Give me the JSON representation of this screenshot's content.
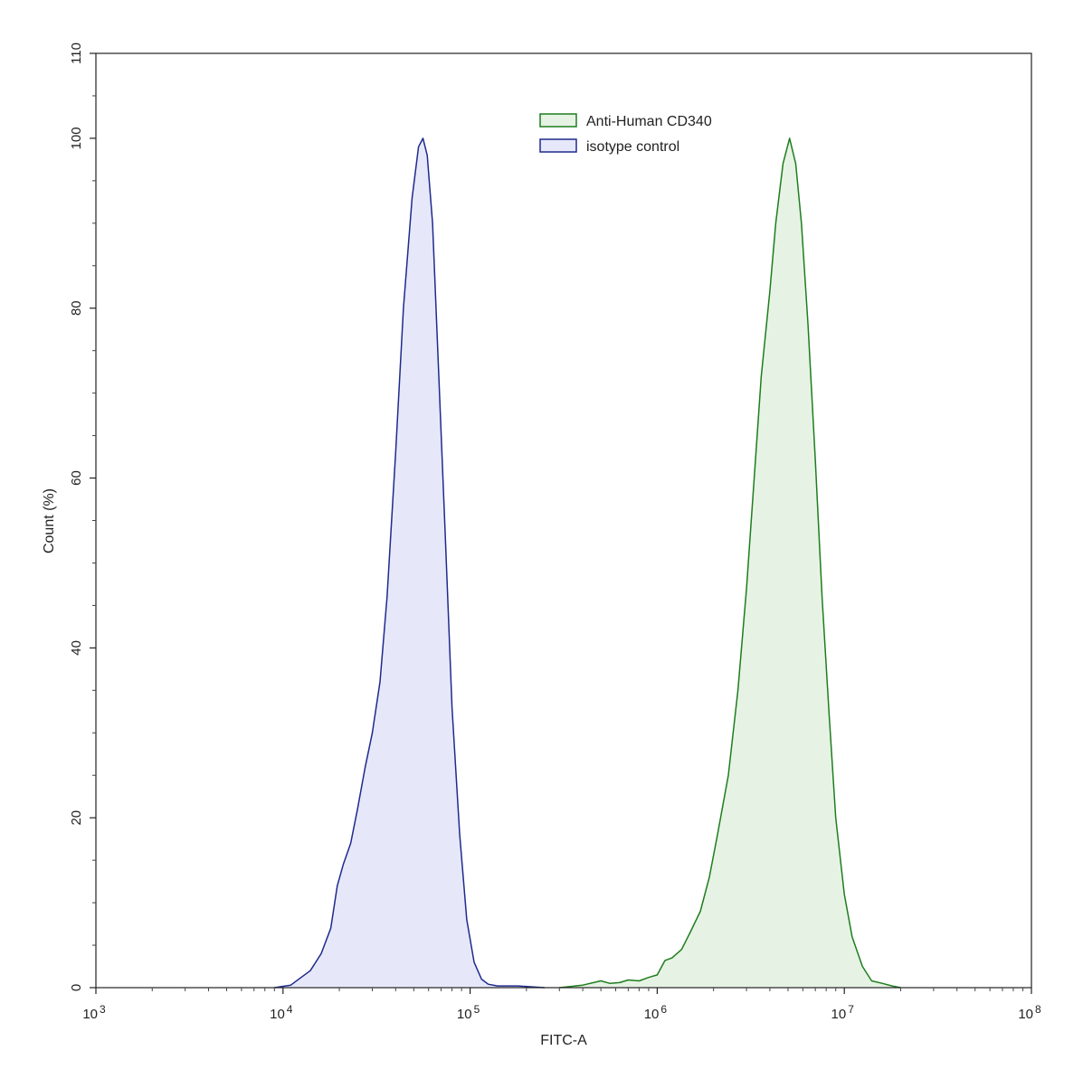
{
  "chart_data": {
    "type": "area",
    "xlabel": "FITC-A",
    "ylabel": "Count  (%)",
    "x_scale": "log",
    "xlim": [
      1000,
      100000000
    ],
    "ylim": [
      0,
      110
    ],
    "x_ticks": [
      {
        "value": 1000,
        "base": "10",
        "exp": "3"
      },
      {
        "value": 10000,
        "base": "10",
        "exp": "4"
      },
      {
        "value": 100000,
        "base": "10",
        "exp": "5"
      },
      {
        "value": 1000000,
        "base": "10",
        "exp": "6"
      },
      {
        "value": 10000000,
        "base": "10",
        "exp": "7"
      },
      {
        "value": 100000000,
        "base": "10",
        "exp": "8"
      }
    ],
    "y_ticks": [
      "0",
      "20",
      "40",
      "60",
      "80",
      "100",
      "110"
    ],
    "legend_position": "top-center",
    "series": [
      {
        "name": "Anti-Human CD340",
        "stroke": "#1e7d1e",
        "fill": "#e6f3e4",
        "points": [
          [
            300000,
            0
          ],
          [
            400000,
            0.3
          ],
          [
            500000,
            0.8
          ],
          [
            560000,
            0.5
          ],
          [
            630000,
            0.6
          ],
          [
            700000,
            0.9
          ],
          [
            800000,
            0.8
          ],
          [
            900000,
            1.2
          ],
          [
            1000000,
            1.5
          ],
          [
            1100000,
            3.2
          ],
          [
            1200000,
            3.5
          ],
          [
            1350000,
            4.5
          ],
          [
            1500000,
            6.5
          ],
          [
            1700000,
            9
          ],
          [
            1900000,
            13
          ],
          [
            2100000,
            18
          ],
          [
            2400000,
            25
          ],
          [
            2700000,
            35
          ],
          [
            3000000,
            47
          ],
          [
            3300000,
            60
          ],
          [
            3600000,
            72
          ],
          [
            4000000,
            82
          ],
          [
            4300000,
            90
          ],
          [
            4700000,
            97
          ],
          [
            5100000,
            100
          ],
          [
            5500000,
            97
          ],
          [
            5900000,
            90
          ],
          [
            6400000,
            78
          ],
          [
            7000000,
            62
          ],
          [
            7600000,
            46
          ],
          [
            8300000,
            32
          ],
          [
            9000000,
            20
          ],
          [
            10000000,
            11
          ],
          [
            11000000,
            6
          ],
          [
            12500000,
            2.5
          ],
          [
            14000000,
            0.8
          ],
          [
            16000000,
            0.5
          ],
          [
            18000000,
            0.2
          ],
          [
            20000000,
            0
          ]
        ]
      },
      {
        "name": "isotype control",
        "stroke": "#1f2a8c",
        "fill": "#e6e8fa",
        "points": [
          [
            9000,
            0
          ],
          [
            11000,
            0.3
          ],
          [
            12500,
            1.2
          ],
          [
            14000,
            2
          ],
          [
            16000,
            4
          ],
          [
            18000,
            7
          ],
          [
            19500,
            12
          ],
          [
            21000,
            14.5
          ],
          [
            23000,
            17
          ],
          [
            25000,
            21
          ],
          [
            27500,
            26
          ],
          [
            30000,
            30
          ],
          [
            33000,
            36
          ],
          [
            36000,
            46
          ],
          [
            40000,
            63
          ],
          [
            44000,
            80
          ],
          [
            49000,
            93
          ],
          [
            53000,
            99
          ],
          [
            56000,
            100
          ],
          [
            59000,
            98
          ],
          [
            63000,
            90
          ],
          [
            68000,
            72
          ],
          [
            74000,
            52
          ],
          [
            80000,
            33
          ],
          [
            88000,
            18
          ],
          [
            96000,
            8
          ],
          [
            105000,
            3
          ],
          [
            115000,
            1
          ],
          [
            125000,
            0.4
          ],
          [
            140000,
            0.2
          ],
          [
            180000,
            0.2
          ],
          [
            250000,
            0
          ]
        ]
      }
    ]
  }
}
